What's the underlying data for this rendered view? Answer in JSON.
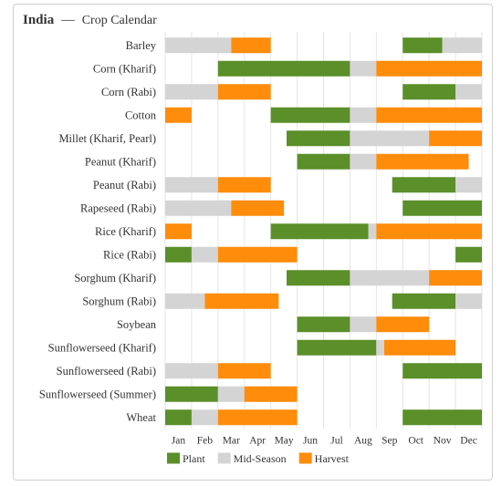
{
  "chart_data": {
    "type": "gantt",
    "title_bold": "India",
    "title_sep": "—",
    "title_rest": "Crop Calendar",
    "months": [
      "Jan",
      "Feb",
      "Mar",
      "Apr",
      "May",
      "Jun",
      "Jul",
      "Aug",
      "Sep",
      "Oct",
      "Nov",
      "Dec"
    ],
    "legend": [
      {
        "key": "plant",
        "label": "Plant",
        "color": "#5a8f29"
      },
      {
        "key": "mid",
        "label": "Mid-Season",
        "color": "#d5d4d4"
      },
      {
        "key": "harvest",
        "label": "Harvest",
        "color": "#ff8c0a"
      }
    ],
    "crops": [
      {
        "name": "Barley",
        "segments": [
          {
            "stage": "mid",
            "start": 0,
            "end": 2.5
          },
          {
            "stage": "harvest",
            "start": 2.5,
            "end": 4
          },
          {
            "stage": "plant",
            "start": 9,
            "end": 10.5
          },
          {
            "stage": "mid",
            "start": 10.5,
            "end": 12
          }
        ]
      },
      {
        "name": "Corn (Kharif)",
        "segments": [
          {
            "stage": "plant",
            "start": 2,
            "end": 7
          },
          {
            "stage": "mid",
            "start": 7,
            "end": 8
          },
          {
            "stage": "harvest",
            "start": 8,
            "end": 12
          }
        ]
      },
      {
        "name": "Corn (Rabi)",
        "segments": [
          {
            "stage": "mid",
            "start": 0,
            "end": 2
          },
          {
            "stage": "harvest",
            "start": 2,
            "end": 4
          },
          {
            "stage": "plant",
            "start": 9,
            "end": 11
          },
          {
            "stage": "mid",
            "start": 11,
            "end": 12
          }
        ]
      },
      {
        "name": "Cotton",
        "segments": [
          {
            "stage": "harvest",
            "start": 0,
            "end": 1
          },
          {
            "stage": "plant",
            "start": 4,
            "end": 7
          },
          {
            "stage": "mid",
            "start": 7,
            "end": 8
          },
          {
            "stage": "harvest",
            "start": 8,
            "end": 12
          }
        ]
      },
      {
        "name": "Millet (Kharif, Pearl)",
        "segments": [
          {
            "stage": "plant",
            "start": 4.6,
            "end": 7
          },
          {
            "stage": "mid",
            "start": 7,
            "end": 10
          },
          {
            "stage": "harvest",
            "start": 10,
            "end": 12
          }
        ]
      },
      {
        "name": "Peanut (Kharif)",
        "segments": [
          {
            "stage": "plant",
            "start": 5,
            "end": 7
          },
          {
            "stage": "mid",
            "start": 7,
            "end": 8
          },
          {
            "stage": "harvest",
            "start": 8,
            "end": 11.5
          }
        ]
      },
      {
        "name": "Peanut (Rabi)",
        "segments": [
          {
            "stage": "mid",
            "start": 0,
            "end": 2
          },
          {
            "stage": "harvest",
            "start": 2,
            "end": 4
          },
          {
            "stage": "plant",
            "start": 8.6,
            "end": 11
          },
          {
            "stage": "mid",
            "start": 11,
            "end": 12
          }
        ]
      },
      {
        "name": "Rapeseed (Rabi)",
        "segments": [
          {
            "stage": "mid",
            "start": 0,
            "end": 2.5
          },
          {
            "stage": "harvest",
            "start": 2.5,
            "end": 4.5
          },
          {
            "stage": "plant",
            "start": 9,
            "end": 12
          }
        ]
      },
      {
        "name": "Rice (Kharif)",
        "segments": [
          {
            "stage": "harvest",
            "start": 0,
            "end": 1
          },
          {
            "stage": "plant",
            "start": 4,
            "end": 7.7
          },
          {
            "stage": "mid",
            "start": 7.7,
            "end": 8
          },
          {
            "stage": "harvest",
            "start": 8,
            "end": 12
          }
        ]
      },
      {
        "name": "Rice (Rabi)",
        "segments": [
          {
            "stage": "plant",
            "start": 0,
            "end": 1
          },
          {
            "stage": "mid",
            "start": 1,
            "end": 2
          },
          {
            "stage": "harvest",
            "start": 2,
            "end": 5
          },
          {
            "stage": "plant",
            "start": 11,
            "end": 12
          }
        ]
      },
      {
        "name": "Sorghum (Kharif)",
        "segments": [
          {
            "stage": "plant",
            "start": 4.6,
            "end": 7
          },
          {
            "stage": "mid",
            "start": 7,
            "end": 10
          },
          {
            "stage": "harvest",
            "start": 10,
            "end": 12
          }
        ]
      },
      {
        "name": "Sorghum (Rabi)",
        "segments": [
          {
            "stage": "mid",
            "start": 0,
            "end": 1.5
          },
          {
            "stage": "harvest",
            "start": 1.5,
            "end": 4.3
          },
          {
            "stage": "plant",
            "start": 8.6,
            "end": 11
          },
          {
            "stage": "mid",
            "start": 11,
            "end": 12
          }
        ]
      },
      {
        "name": "Soybean",
        "segments": [
          {
            "stage": "plant",
            "start": 5,
            "end": 7
          },
          {
            "stage": "mid",
            "start": 7,
            "end": 8
          },
          {
            "stage": "harvest",
            "start": 8,
            "end": 10
          }
        ]
      },
      {
        "name": "Sunflowerseed (Kharif)",
        "segments": [
          {
            "stage": "plant",
            "start": 5,
            "end": 8
          },
          {
            "stage": "mid",
            "start": 8,
            "end": 8.3
          },
          {
            "stage": "harvest",
            "start": 8.3,
            "end": 11
          }
        ]
      },
      {
        "name": "Sunflowerseed (Rabi)",
        "segments": [
          {
            "stage": "mid",
            "start": 0,
            "end": 2
          },
          {
            "stage": "harvest",
            "start": 2,
            "end": 4
          },
          {
            "stage": "plant",
            "start": 9,
            "end": 12
          }
        ]
      },
      {
        "name": "Sunflowerseed (Summer)",
        "segments": [
          {
            "stage": "plant",
            "start": 0,
            "end": 2
          },
          {
            "stage": "mid",
            "start": 2,
            "end": 3
          },
          {
            "stage": "harvest",
            "start": 3,
            "end": 5
          }
        ]
      },
      {
        "name": "Wheat",
        "segments": [
          {
            "stage": "plant",
            "start": 0,
            "end": 1
          },
          {
            "stage": "mid",
            "start": 1,
            "end": 2
          },
          {
            "stage": "harvest",
            "start": 2,
            "end": 5
          },
          {
            "stage": "plant",
            "start": 9,
            "end": 12
          }
        ]
      }
    ]
  }
}
